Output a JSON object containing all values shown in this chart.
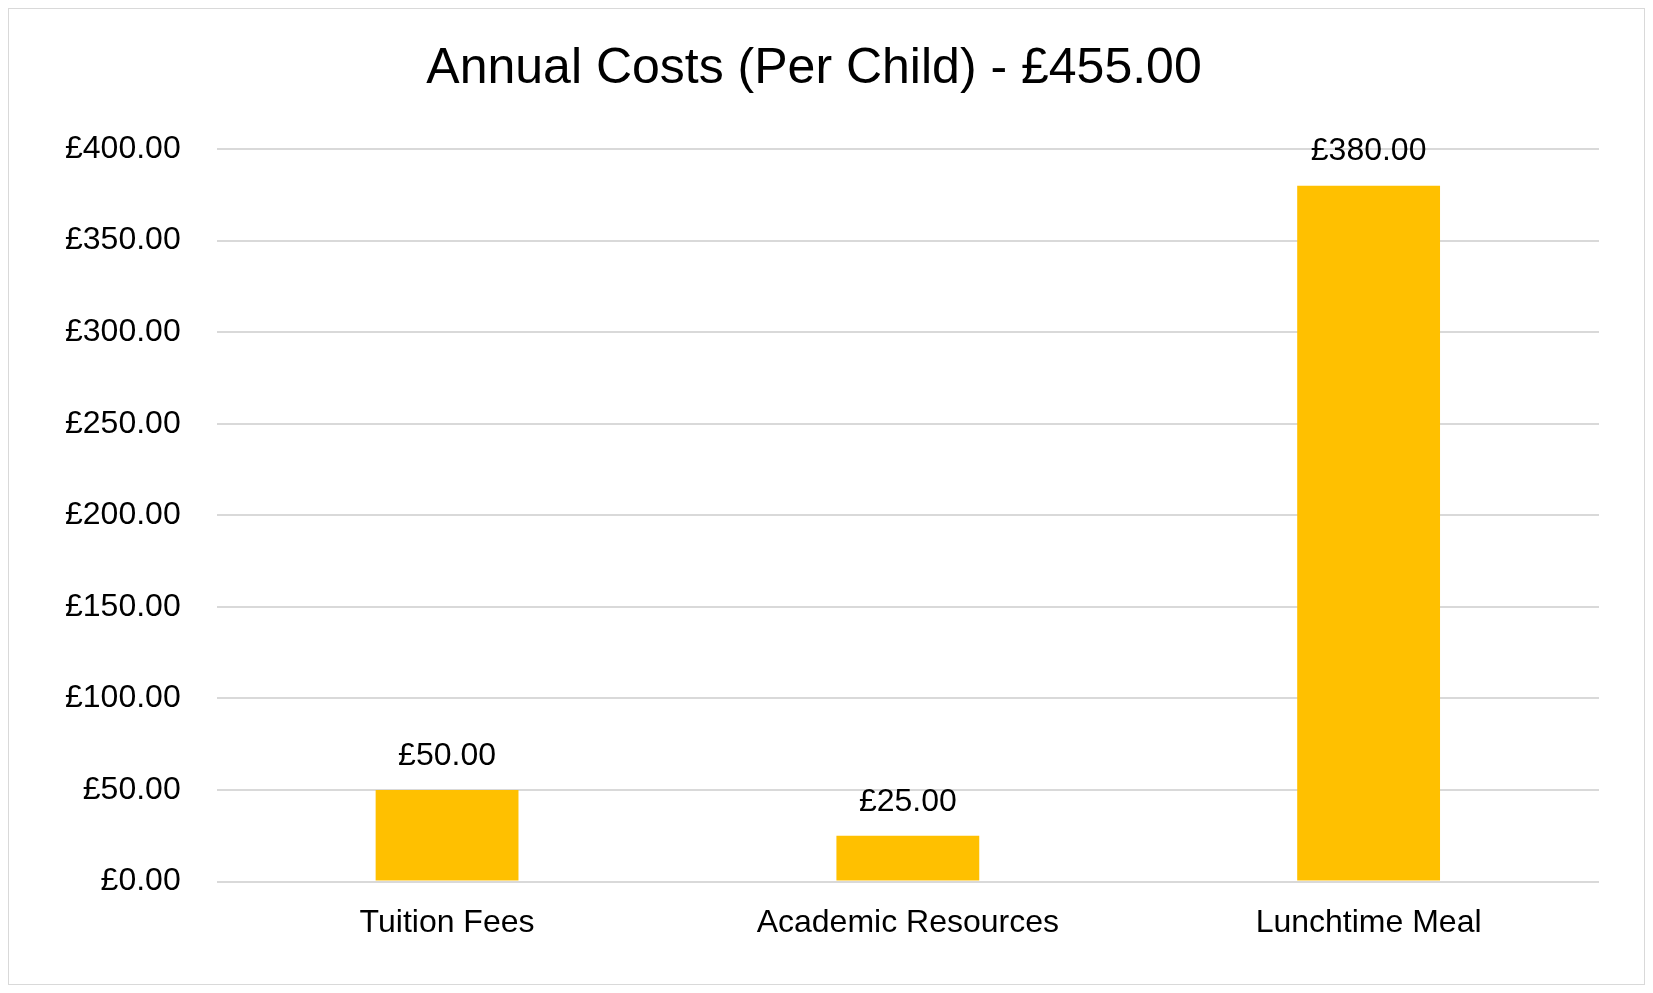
{
  "chart_data": {
    "type": "bar",
    "title": "Annual Costs (Per Child) - £455.00",
    "categories": [
      "Tuition Fees",
      "Academic Resources",
      "Lunchtime Meal"
    ],
    "values": [
      50,
      25,
      380
    ],
    "value_labels": [
      "£50.00",
      "£25.00",
      "£380.00"
    ],
    "color": "#ffc000",
    "ylim": [
      0,
      400
    ],
    "yticks": [
      {
        "value": 0,
        "label": "£0.00"
      },
      {
        "value": 50,
        "label": "£50.00"
      },
      {
        "value": 100,
        "label": "£100.00"
      },
      {
        "value": 150,
        "label": "£150.00"
      },
      {
        "value": 200,
        "label": "£200.00"
      },
      {
        "value": 250,
        "label": "£250.00"
      },
      {
        "value": 300,
        "label": "£300.00"
      },
      {
        "value": 350,
        "label": "£350.00"
      },
      {
        "value": 400,
        "label": "£400.00"
      }
    ],
    "grid": "y",
    "legend": false
  }
}
